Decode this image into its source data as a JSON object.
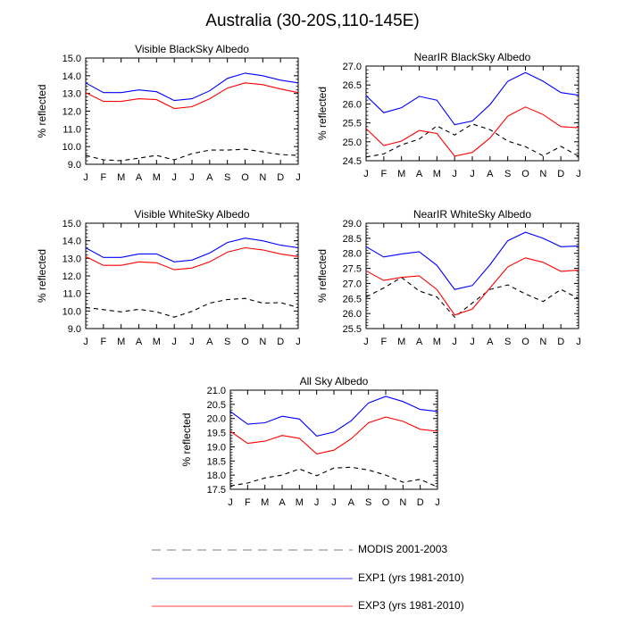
{
  "page": {
    "title": "Australia (30-20S,110-145E)"
  },
  "colors": {
    "modis": "#000000",
    "exp1": "#0000ff",
    "exp3": "#ff0000",
    "legend_modis": "#999999",
    "legend_exp1": "#6666ff",
    "legend_exp3": "#ff6666"
  },
  "legend": {
    "modis": "MODIS 2001-2003",
    "exp1": "EXP1 (yrs 1981-2010)",
    "exp3": "EXP3 (yrs 1981-2010)"
  },
  "chart_data": [
    {
      "id": "vis-black",
      "type": "line",
      "title": "Visible BlackSky Albedo",
      "ylabel": "% reflected",
      "categories": [
        "J",
        "F",
        "M",
        "A",
        "M",
        "J",
        "J",
        "A",
        "S",
        "O",
        "N",
        "D",
        "J"
      ],
      "ylim": [
        9.0,
        15.0
      ],
      "yticks": [
        "9.0",
        "10.0",
        "11.0",
        "12.0",
        "13.0",
        "14.0",
        "15.0"
      ],
      "series": [
        {
          "name": "MODIS 2001-2003",
          "key": "modis",
          "values": [
            9.5,
            9.25,
            9.2,
            9.35,
            9.5,
            9.25,
            9.6,
            9.8,
            9.8,
            9.85,
            9.7,
            9.55,
            9.5
          ]
        },
        {
          "name": "EXP1 (yrs 1981-2010)",
          "key": "exp1",
          "values": [
            13.6,
            13.05,
            13.05,
            13.2,
            13.1,
            12.6,
            12.7,
            13.15,
            13.85,
            14.15,
            14.0,
            13.75,
            13.6
          ]
        },
        {
          "name": "EXP3 (yrs 1981-2010)",
          "key": "exp3",
          "values": [
            13.05,
            12.55,
            12.55,
            12.7,
            12.65,
            12.15,
            12.25,
            12.7,
            13.3,
            13.6,
            13.5,
            13.25,
            13.05
          ]
        }
      ]
    },
    {
      "id": "nir-black",
      "type": "line",
      "title": "NearIR BlackSky Albedo",
      "ylabel": "% reflected",
      "categories": [
        "J",
        "F",
        "M",
        "A",
        "M",
        "J",
        "J",
        "A",
        "S",
        "O",
        "N",
        "D",
        "J"
      ],
      "ylim": [
        24.5,
        27.0
      ],
      "yticks": [
        "24.5",
        "25.0",
        "25.5",
        "26.0",
        "26.5",
        "27.0"
      ],
      "series": [
        {
          "name": "MODIS 2001-2003",
          "key": "modis",
          "values": [
            24.6,
            24.68,
            24.92,
            25.07,
            25.42,
            25.18,
            25.47,
            25.32,
            25.02,
            24.87,
            24.63,
            24.88,
            24.62
          ]
        },
        {
          "name": "EXP1 (yrs 1981-2010)",
          "key": "exp1",
          "values": [
            26.22,
            25.77,
            25.9,
            26.2,
            26.1,
            25.45,
            25.55,
            25.98,
            26.6,
            26.83,
            26.6,
            26.3,
            26.23
          ]
        },
        {
          "name": "EXP3 (yrs 1981-2010)",
          "key": "exp3",
          "values": [
            25.35,
            24.9,
            25.02,
            25.3,
            25.22,
            24.62,
            24.72,
            25.1,
            25.68,
            25.92,
            25.72,
            25.4,
            25.37
          ]
        }
      ]
    },
    {
      "id": "vis-white",
      "type": "line",
      "title": "Visible WhiteSky Albedo",
      "ylabel": "% reflected",
      "categories": [
        "J",
        "F",
        "M",
        "A",
        "M",
        "J",
        "J",
        "A",
        "S",
        "O",
        "N",
        "D",
        "J"
      ],
      "ylim": [
        9.0,
        15.0
      ],
      "yticks": [
        "9.0",
        "10.0",
        "11.0",
        "12.0",
        "13.0",
        "14.0",
        "15.0"
      ],
      "series": [
        {
          "name": "MODIS 2001-2003",
          "key": "modis",
          "values": [
            10.2,
            10.08,
            9.95,
            10.1,
            9.95,
            9.65,
            9.98,
            10.45,
            10.65,
            10.72,
            10.45,
            10.48,
            10.2
          ]
        },
        {
          "name": "EXP1 (yrs 1981-2010)",
          "key": "exp1",
          "values": [
            13.6,
            13.05,
            13.05,
            13.25,
            13.25,
            12.8,
            12.9,
            13.3,
            13.9,
            14.15,
            14.0,
            13.75,
            13.6
          ]
        },
        {
          "name": "EXP3 (yrs 1981-2010)",
          "key": "exp3",
          "values": [
            13.1,
            12.6,
            12.6,
            12.8,
            12.75,
            12.35,
            12.45,
            12.8,
            13.35,
            13.6,
            13.48,
            13.25,
            13.1
          ]
        }
      ]
    },
    {
      "id": "nir-white",
      "type": "line",
      "title": "NearIR WhiteSky Albedo",
      "ylabel": "% reflected",
      "categories": [
        "J",
        "F",
        "M",
        "A",
        "M",
        "J",
        "J",
        "A",
        "S",
        "O",
        "N",
        "D",
        "J"
      ],
      "ylim": [
        25.5,
        29.0
      ],
      "yticks": [
        "25.5",
        "26.0",
        "26.5",
        "27.0",
        "27.5",
        "28.0",
        "28.5",
        "29.0"
      ],
      "series": [
        {
          "name": "MODIS 2001-2003",
          "key": "modis",
          "values": [
            26.55,
            26.85,
            27.2,
            26.75,
            26.55,
            25.88,
            26.35,
            26.8,
            26.95,
            26.65,
            26.4,
            26.8,
            26.5
          ]
        },
        {
          "name": "EXP1 (yrs 1981-2010)",
          "key": "exp1",
          "values": [
            28.22,
            27.88,
            27.98,
            28.05,
            27.6,
            26.8,
            26.93,
            27.62,
            28.42,
            28.7,
            28.5,
            28.22,
            28.24
          ]
        },
        {
          "name": "EXP3 (yrs 1981-2010)",
          "key": "exp3",
          "values": [
            27.42,
            27.1,
            27.2,
            27.25,
            26.8,
            25.95,
            26.15,
            26.85,
            27.55,
            27.85,
            27.7,
            27.4,
            27.44
          ]
        }
      ]
    },
    {
      "id": "all-sky",
      "type": "line",
      "title": "All Sky Albedo",
      "ylabel": "% reflected",
      "categories": [
        "J",
        "F",
        "M",
        "A",
        "M",
        "J",
        "J",
        "A",
        "S",
        "O",
        "N",
        "D",
        "J"
      ],
      "ylim": [
        17.5,
        21.0
      ],
      "yticks": [
        "17.5",
        "18.0",
        "18.5",
        "19.0",
        "19.5",
        "20.0",
        "20.5",
        "21.0"
      ],
      "series": [
        {
          "name": "MODIS 2001-2003",
          "key": "modis",
          "values": [
            17.62,
            17.72,
            17.9,
            18.0,
            18.22,
            17.98,
            18.25,
            18.28,
            18.18,
            18.0,
            17.75,
            17.85,
            17.58
          ]
        },
        {
          "name": "EXP1 (yrs 1981-2010)",
          "key": "exp1",
          "values": [
            20.25,
            19.8,
            19.85,
            20.08,
            19.98,
            19.38,
            19.52,
            19.92,
            20.55,
            20.78,
            20.6,
            20.32,
            20.25
          ]
        },
        {
          "name": "EXP3 (yrs 1981-2010)",
          "key": "exp3",
          "values": [
            19.55,
            19.12,
            19.2,
            19.4,
            19.3,
            18.75,
            18.88,
            19.28,
            19.85,
            20.05,
            19.9,
            19.62,
            19.55
          ]
        }
      ]
    }
  ]
}
